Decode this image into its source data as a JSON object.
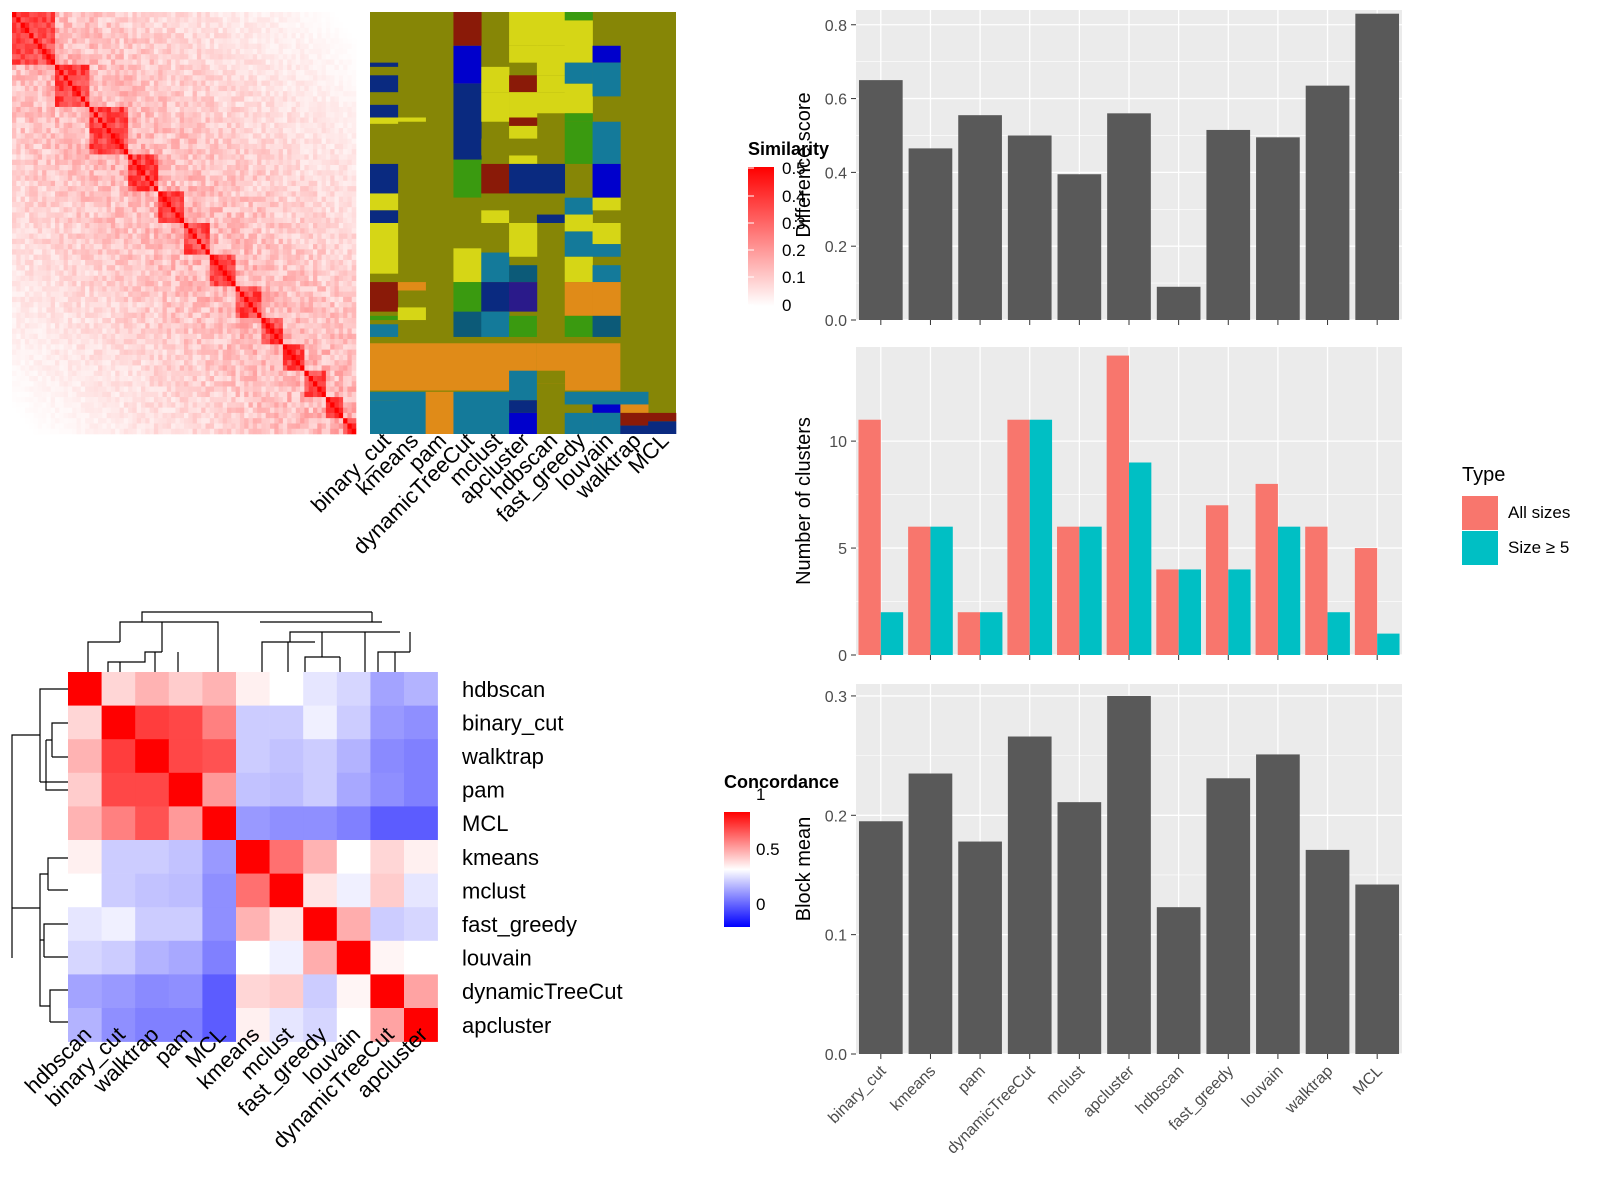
{
  "colors": {
    "panel_bg": "#ebebeb",
    "grid": "#ffffff",
    "bar": "#595959",
    "all_sizes": "#f8766d",
    "size_ge_5": "#00bfc4",
    "heat_high": "#ff0000",
    "heat_mid": "#ffffff",
    "heat_low": "#0000ff",
    "olive": "#868606",
    "orange": "#e08b18",
    "yellow": "#d6d616",
    "teal": "#147a9a",
    "navy": "#0a2a80",
    "blue": "#0000cc",
    "darkred": "#8a1a08",
    "green": "#3a9a10",
    "darkteal": "#0c5a78",
    "purple": "#2a1a8a"
  },
  "methods": [
    "binary_cut",
    "kmeans",
    "pam",
    "dynamicTreeCut",
    "mclust",
    "apcluster",
    "hdbscan",
    "fast_greedy",
    "louvain",
    "walktrap",
    "MCL"
  ],
  "similarity_legend": {
    "title": "Similarity",
    "ticks": [
      "0.5",
      "0.4",
      "0.3",
      "0.2",
      "0.1",
      "0"
    ]
  },
  "concordance_legend": {
    "title": "Concordance",
    "ticks": [
      "1",
      "0.5",
      "0"
    ]
  },
  "concordance_heatmap": {
    "order": [
      "hdbscan",
      "binary_cut",
      "walktrap",
      "pam",
      "MCL",
      "kmeans",
      "mclust",
      "fast_greedy",
      "louvain",
      "dynamicTreeCut",
      "apcluster"
    ],
    "matrix": [
      [
        1.0,
        0.58,
        0.65,
        0.6,
        0.65,
        0.53,
        0.5,
        0.45,
        0.42,
        0.32,
        0.35
      ],
      [
        0.58,
        1.0,
        0.88,
        0.86,
        0.75,
        0.4,
        0.4,
        0.47,
        0.4,
        0.3,
        0.28
      ],
      [
        0.65,
        0.88,
        1.0,
        0.86,
        0.84,
        0.4,
        0.38,
        0.4,
        0.35,
        0.27,
        0.25
      ],
      [
        0.6,
        0.86,
        0.86,
        1.0,
        0.7,
        0.38,
        0.37,
        0.4,
        0.33,
        0.28,
        0.25
      ],
      [
        0.65,
        0.75,
        0.84,
        0.7,
        1.0,
        0.3,
        0.28,
        0.28,
        0.25,
        0.18,
        0.18
      ],
      [
        0.53,
        0.4,
        0.4,
        0.38,
        0.3,
        1.0,
        0.78,
        0.65,
        0.5,
        0.58,
        0.53
      ],
      [
        0.5,
        0.4,
        0.38,
        0.37,
        0.28,
        0.78,
        1.0,
        0.55,
        0.47,
        0.6,
        0.45
      ],
      [
        0.45,
        0.47,
        0.4,
        0.4,
        0.28,
        0.65,
        0.55,
        1.0,
        0.66,
        0.4,
        0.42
      ],
      [
        0.42,
        0.4,
        0.35,
        0.33,
        0.25,
        0.5,
        0.47,
        0.66,
        1.0,
        0.52,
        0.5
      ],
      [
        0.32,
        0.3,
        0.27,
        0.28,
        0.18,
        0.58,
        0.6,
        0.4,
        0.52,
        1.0,
        0.68
      ],
      [
        0.35,
        0.28,
        0.25,
        0.25,
        0.18,
        0.53,
        0.45,
        0.42,
        0.5,
        0.68,
        1.0
      ]
    ]
  },
  "chart_data": [
    {
      "type": "heatmap",
      "title": "",
      "legend_title": "Similarity",
      "legend_range": [
        0,
        0.5
      ],
      "description_blocks_on_diagonal": true
    },
    {
      "type": "heatmap",
      "title": "",
      "columns": [
        "binary_cut",
        "kmeans",
        "pam",
        "dynamicTreeCut",
        "mclust",
        "apcluster",
        "hdbscan",
        "fast_greedy",
        "louvain",
        "walktrap",
        "MCL"
      ],
      "values": "cluster labels per term (categorical)"
    },
    {
      "type": "heatmap",
      "title": "",
      "legend_title": "Concordance",
      "legend_range": [
        0,
        1
      ],
      "rows": [
        "hdbscan",
        "binary_cut",
        "walktrap",
        "pam",
        "MCL",
        "kmeans",
        "mclust",
        "fast_greedy",
        "louvain",
        "dynamicTreeCut",
        "apcluster"
      ],
      "columns": [
        "hdbscan",
        "binary_cut",
        "walktrap",
        "pam",
        "MCL",
        "kmeans",
        "mclust",
        "fast_greedy",
        "louvain",
        "dynamicTreeCut",
        "apcluster"
      ]
    },
    {
      "type": "bar",
      "categories": [
        "binary_cut",
        "kmeans",
        "pam",
        "dynamicTreeCut",
        "mclust",
        "apcluster",
        "hdbscan",
        "fast_greedy",
        "louvain",
        "walktrap",
        "MCL"
      ],
      "values": [
        0.65,
        0.465,
        0.555,
        0.5,
        0.395,
        0.56,
        0.09,
        0.515,
        0.495,
        0.635,
        0.83
      ],
      "ylabel": "Difference score",
      "ylim": [
        0,
        0.84
      ],
      "yticks": [
        "0.0",
        "0.2",
        "0.4",
        "0.6",
        "0.8"
      ],
      "grid": true
    },
    {
      "type": "bar",
      "categories": [
        "binary_cut",
        "kmeans",
        "pam",
        "dynamicTreeCut",
        "mclust",
        "apcluster",
        "hdbscan",
        "fast_greedy",
        "louvain",
        "walktrap",
        "MCL"
      ],
      "series": [
        {
          "name": "All sizes",
          "values": [
            11,
            6,
            2,
            11,
            6,
            14,
            4,
            7,
            8,
            6,
            5
          ]
        },
        {
          "name": "Size ≥ 5",
          "values": [
            2,
            6,
            2,
            11,
            6,
            9,
            4,
            4,
            6,
            2,
            1
          ]
        }
      ],
      "ylabel": "Number of clusters",
      "ylim": [
        0,
        14.4
      ],
      "yticks": [
        "0",
        "5",
        "10"
      ],
      "legend_title": "Type",
      "legend_position": "right",
      "grid": true
    },
    {
      "type": "bar",
      "categories": [
        "binary_cut",
        "kmeans",
        "pam",
        "dynamicTreeCut",
        "mclust",
        "apcluster",
        "hdbscan",
        "fast_greedy",
        "louvain",
        "walktrap",
        "MCL"
      ],
      "values": [
        0.195,
        0.235,
        0.178,
        0.266,
        0.211,
        0.3,
        0.123,
        0.231,
        0.251,
        0.171,
        0.142
      ],
      "ylabel": "Block mean",
      "ylim": [
        0,
        0.31
      ],
      "yticks": [
        "0.0",
        "0.1",
        "0.2",
        "0.3"
      ],
      "grid": true
    }
  ]
}
